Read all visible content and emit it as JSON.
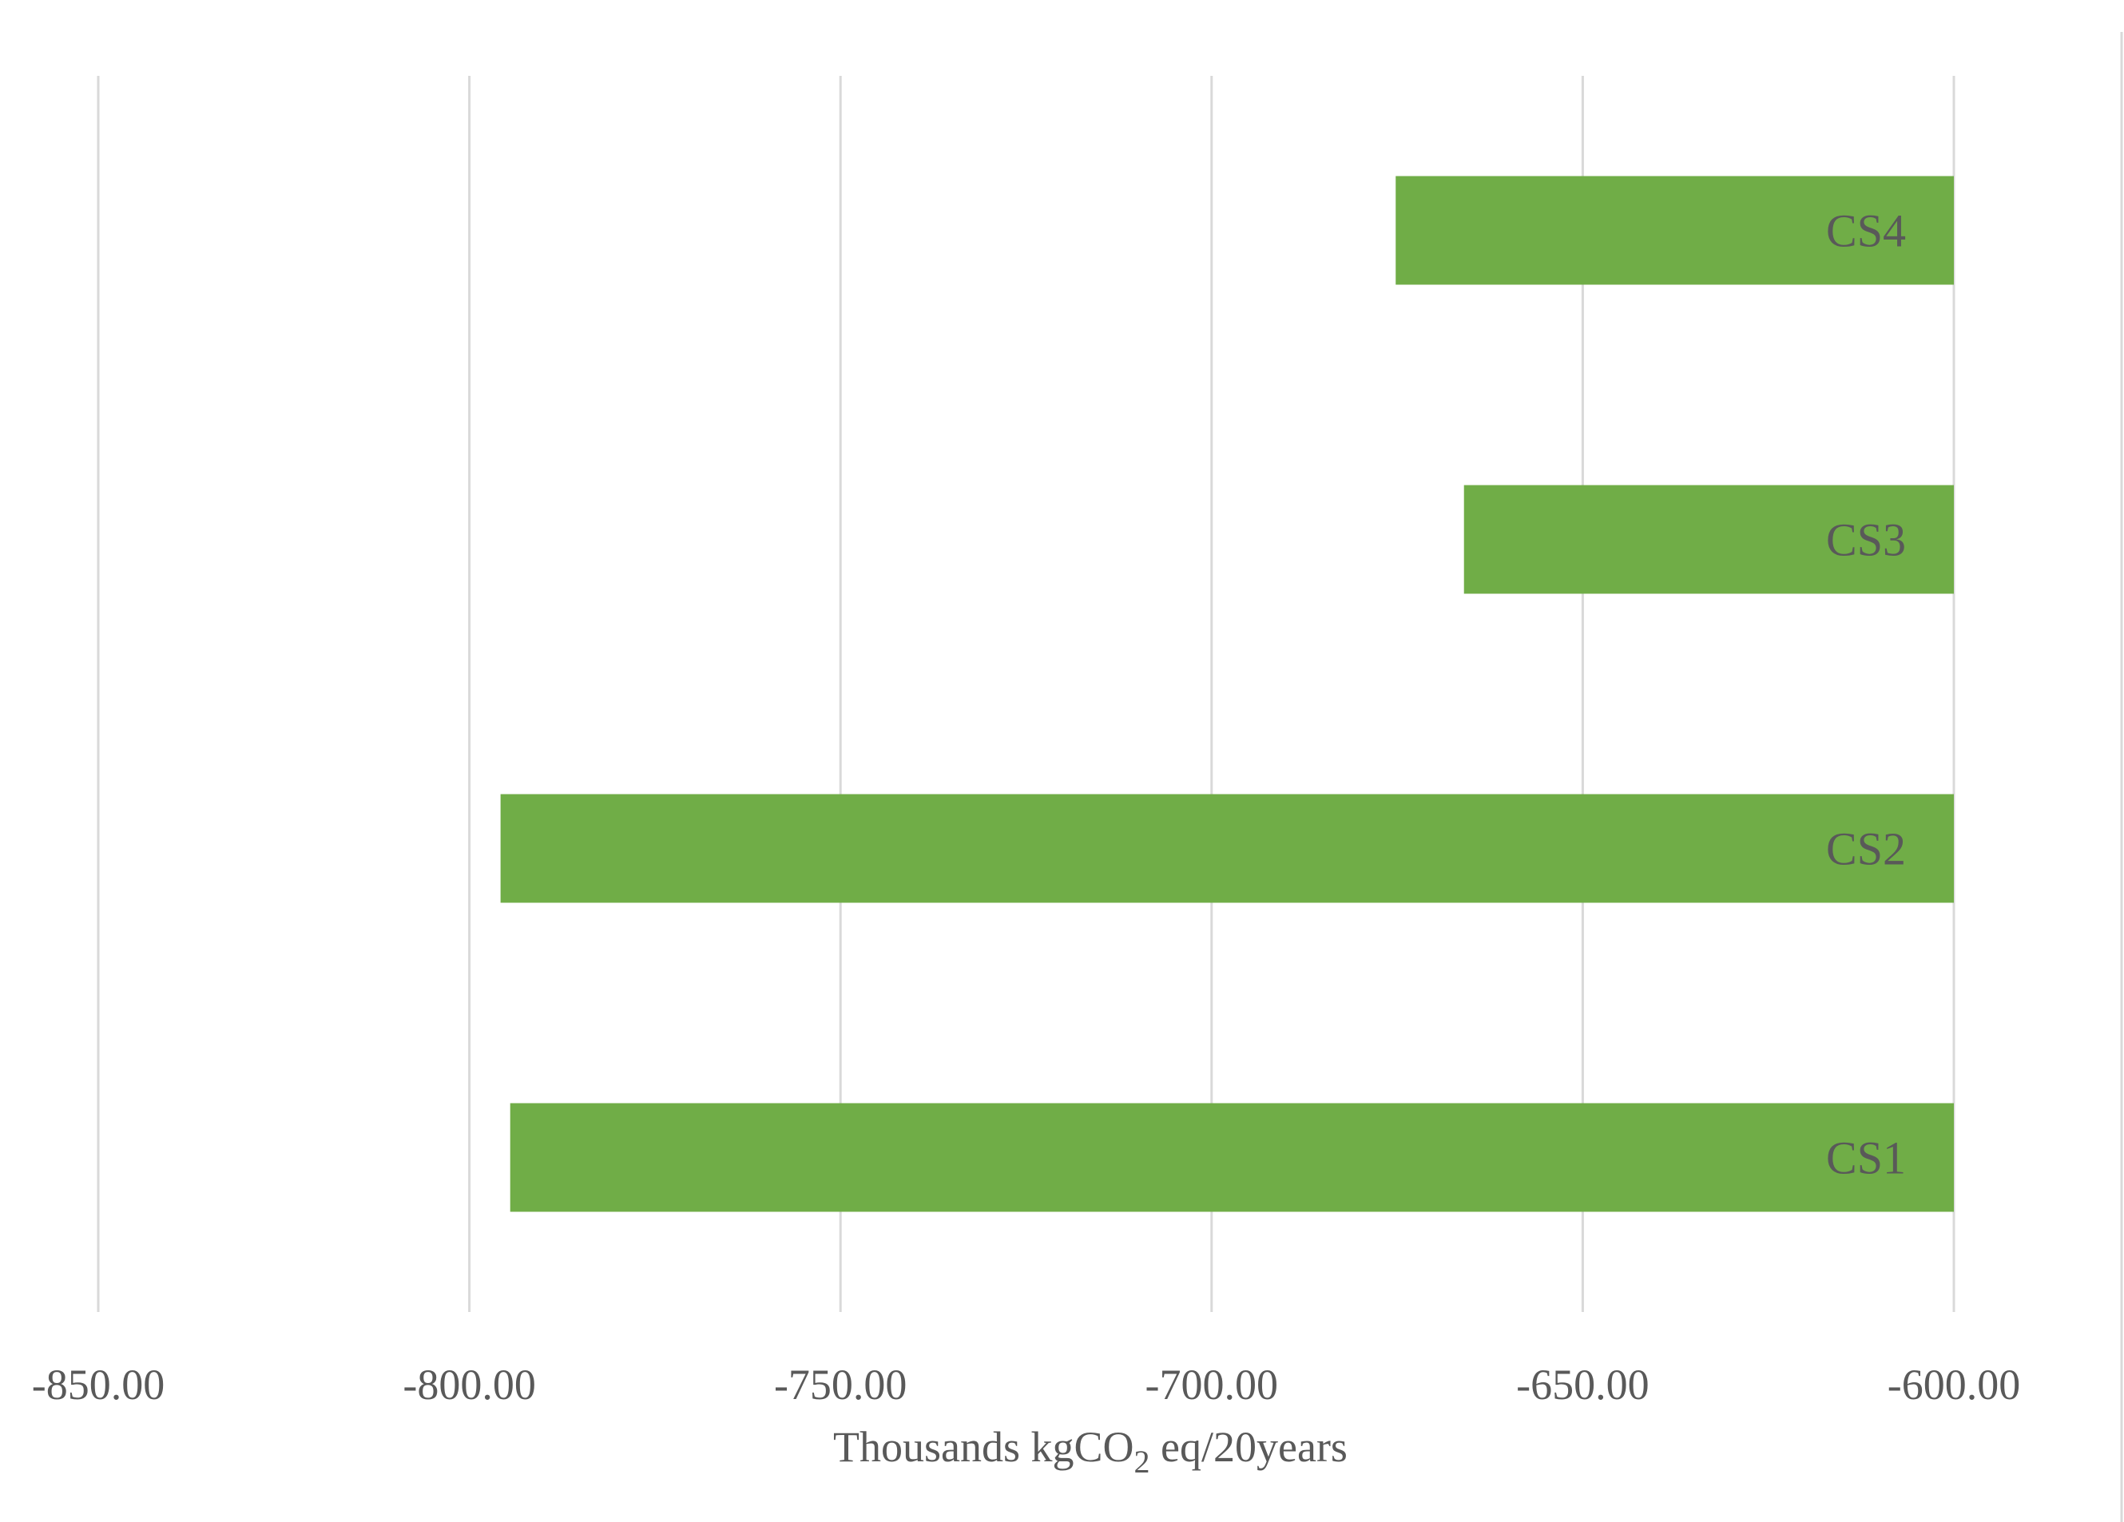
{
  "chart_data": {
    "type": "bar",
    "orientation": "horizontal",
    "categories": [
      "CS1",
      "CS2",
      "CS3",
      "CS4"
    ],
    "values": [
      -794.5,
      -795.8,
      -666.0,
      -675.2
    ],
    "bar_baseline": -600,
    "xlim": [
      -850,
      -600
    ],
    "x_ticks": [
      -850,
      -800,
      -750,
      -700,
      -650,
      -600
    ],
    "x_tick_labels": [
      "-850.00",
      "-800.00",
      "-750.00",
      "-700.00",
      "-650.00",
      "-600.00"
    ],
    "xlabel_parts": {
      "before": "Thousands kgCO",
      "subscript": "2",
      "after": " eq/20years"
    },
    "title": "",
    "ylabel": "",
    "grid": "vertical",
    "legend": "none",
    "bar_color": "#70ad47",
    "label_color": "#595959",
    "grid_color": "#d9d9d9"
  }
}
